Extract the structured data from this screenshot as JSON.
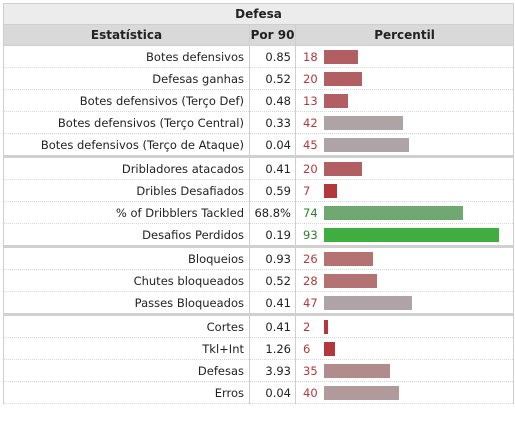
{
  "title": "Defesa",
  "headers": {
    "stat": "Estatística",
    "per90": "Por 90",
    "percentile": "Percentil"
  },
  "groups": [
    {
      "rows": [
        {
          "label": "Botes defensivos",
          "per90": "0.85",
          "percentile": 18,
          "color": "#b15f63",
          "text_color": "#b03a3a"
        },
        {
          "label": "Defesas ganhas",
          "per90": "0.52",
          "percentile": 20,
          "color": "#b15f63",
          "text_color": "#b03a3a"
        },
        {
          "label": "Botes defensivos (Terço Def)",
          "per90": "0.48",
          "percentile": 13,
          "color": "#b15f63",
          "text_color": "#b03a3a"
        },
        {
          "label": "Botes defensivos (Terço Central)",
          "per90": "0.33",
          "percentile": 42,
          "color": "#aea3a5",
          "text_color": "#b03a3a"
        },
        {
          "label": "Botes defensivos (Terço de Ataque)",
          "per90": "0.04",
          "percentile": 45,
          "color": "#aea3a5",
          "text_color": "#b03a3a"
        }
      ]
    },
    {
      "rows": [
        {
          "label": "Dribladores atacados",
          "per90": "0.41",
          "percentile": 20,
          "color": "#b15f63",
          "text_color": "#b03a3a"
        },
        {
          "label": "Dribles Desafiados",
          "per90": "0.59",
          "percentile": 7,
          "color": "#b3383c",
          "text_color": "#b03a3a"
        },
        {
          "label": "% of Dribblers Tackled",
          "per90": "68.8%",
          "percentile": 74,
          "color": "#6fa870",
          "text_color": "#2e7d32"
        },
        {
          "label": "Desafios Perdidos",
          "per90": "0.19",
          "percentile": 93,
          "color": "#3fad3f",
          "text_color": "#2e7d32"
        }
      ]
    },
    {
      "rows": [
        {
          "label": "Bloqueios",
          "per90": "0.93",
          "percentile": 26,
          "color": "#b47273",
          "text_color": "#b03a3a"
        },
        {
          "label": "Chutes bloqueados",
          "per90": "0.52",
          "percentile": 28,
          "color": "#b47273",
          "text_color": "#b03a3a"
        },
        {
          "label": "Passes Bloqueados",
          "per90": "0.41",
          "percentile": 47,
          "color": "#aea3a5",
          "text_color": "#b03a3a"
        }
      ]
    },
    {
      "rows": [
        {
          "label": "Cortes",
          "per90": "0.41",
          "percentile": 2,
          "color": "#b3383c",
          "text_color": "#b03a3a"
        },
        {
          "label": "Tkl+Int",
          "per90": "1.26",
          "percentile": 6,
          "color": "#b3383c",
          "text_color": "#b03a3a"
        },
        {
          "label": "Defesas",
          "per90": "3.93",
          "percentile": 35,
          "color": "#b18c8d",
          "text_color": "#b03a3a"
        },
        {
          "label": "Erros",
          "per90": "0.04",
          "percentile": 40,
          "color": "#b09a9b",
          "text_color": "#b03a3a"
        }
      ]
    }
  ]
}
